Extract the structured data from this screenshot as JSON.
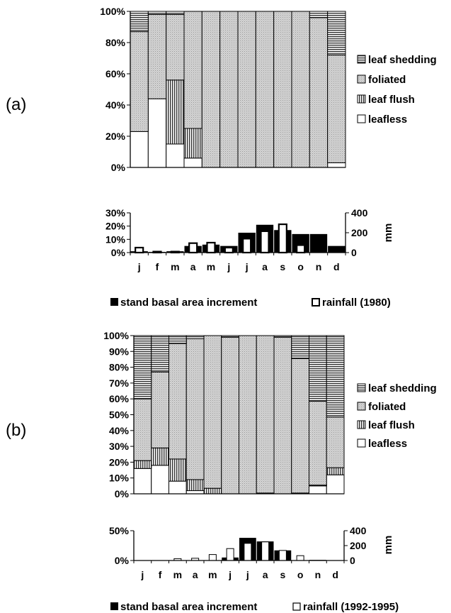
{
  "panels": {
    "a": "(a)",
    "b": "(b)"
  },
  "legend": {
    "phenology": [
      "leaf shedding",
      "foliated",
      "leaf flush",
      "leafless"
    ],
    "growth_a": [
      "stand basal area increment",
      "rainfall (1980)"
    ],
    "growth_b": [
      "stand basal area increment",
      "rainfall (1992-1995)"
    ],
    "unit": "mm"
  },
  "chart_data": [
    {
      "type": "bar",
      "id": "phenology-a",
      "stacked": true,
      "categories": [
        "j",
        "f",
        "m",
        "a",
        "m",
        "j",
        "j",
        "a",
        "s",
        "o",
        "n",
        "d"
      ],
      "ylim": [
        0,
        100
      ],
      "y_ticks": [
        "0%",
        "20%",
        "40%",
        "60%",
        "80%",
        "100%"
      ],
      "series": [
        {
          "name": "leafless",
          "values": [
            23,
            44,
            15,
            6,
            0,
            0,
            0,
            0,
            0,
            0,
            0,
            3
          ]
        },
        {
          "name": "leaf flush",
          "values": [
            0,
            0,
            41,
            19,
            0,
            0,
            0,
            0,
            0,
            0,
            0,
            0
          ]
        },
        {
          "name": "foliated",
          "values": [
            64,
            54,
            42,
            75,
            100,
            100,
            100,
            100,
            100,
            100,
            96,
            69
          ]
        },
        {
          "name": "leaf shedding",
          "values": [
            13,
            2,
            2,
            0,
            0,
            0,
            0,
            0,
            0,
            0,
            4,
            28
          ]
        }
      ]
    },
    {
      "type": "bar",
      "id": "growth-a",
      "categories": [
        "j",
        "f",
        "m",
        "a",
        "m",
        "j",
        "j",
        "a",
        "s",
        "o",
        "n",
        "d"
      ],
      "ylim": [
        0,
        30
      ],
      "y_ticks": [
        "0%",
        "10%",
        "20%",
        "30%"
      ],
      "y2lim": [
        0,
        400
      ],
      "y2_ticks": [
        "0",
        "200",
        "400"
      ],
      "y2label": "mm",
      "series": [
        {
          "name": "stand basal area increment",
          "axis": "left",
          "values": [
            1,
            0.5,
            1,
            5,
            6,
            5,
            15,
            21,
            17,
            14,
            14,
            5
          ]
        },
        {
          "name": "rainfall (1980)",
          "axis": "right",
          "values": [
            50,
            10,
            10,
            95,
            100,
            50,
            140,
            215,
            285,
            75,
            0,
            0
          ]
        }
      ]
    },
    {
      "type": "bar",
      "id": "phenology-b",
      "stacked": true,
      "categories": [
        "j",
        "f",
        "m",
        "a",
        "m",
        "j",
        "j",
        "a",
        "s",
        "o",
        "n",
        "d"
      ],
      "ylim": [
        0,
        100
      ],
      "y_ticks": [
        "0%",
        "10%",
        "20%",
        "30%",
        "40%",
        "50%",
        "60%",
        "70%",
        "80%",
        "90%",
        "100%"
      ],
      "series": [
        {
          "name": "leafless",
          "values": [
            16,
            18,
            8,
            2,
            0,
            0,
            0,
            0.5,
            0,
            0.5,
            5,
            12
          ]
        },
        {
          "name": "leaf flush",
          "values": [
            5,
            11,
            14,
            7,
            3.5,
            0,
            0,
            0,
            0,
            0,
            0.5,
            4.5
          ]
        },
        {
          "name": "foliated",
          "values": [
            39,
            48,
            73,
            89,
            96.5,
            99,
            100,
            99.5,
            99,
            85,
            53,
            32
          ]
        },
        {
          "name": "leaf shedding",
          "values": [
            40,
            23,
            5,
            2,
            0,
            1,
            0,
            0,
            1,
            14.5,
            41.5,
            51.5
          ]
        }
      ]
    },
    {
      "type": "bar",
      "id": "growth-b",
      "categories": [
        "j",
        "f",
        "m",
        "a",
        "m",
        "j",
        "j",
        "a",
        "s",
        "o",
        "n",
        "d"
      ],
      "ylim": [
        0,
        50
      ],
      "y_ticks": [
        "0%",
        "50%"
      ],
      "y2lim": [
        0,
        400
      ],
      "y2_ticks": [
        "0",
        "200",
        "400"
      ],
      "y2label": "mm",
      "series": [
        {
          "name": "stand basal area increment",
          "axis": "left",
          "values": [
            0,
            0,
            0,
            0,
            0,
            5,
            38,
            32,
            17,
            0,
            1,
            0
          ]
        },
        {
          "name": "rainfall (1992-1995)",
          "axis": "right",
          "values": [
            0,
            0,
            25,
            30,
            80,
            160,
            230,
            250,
            135,
            65,
            0,
            0
          ]
        }
      ]
    }
  ]
}
